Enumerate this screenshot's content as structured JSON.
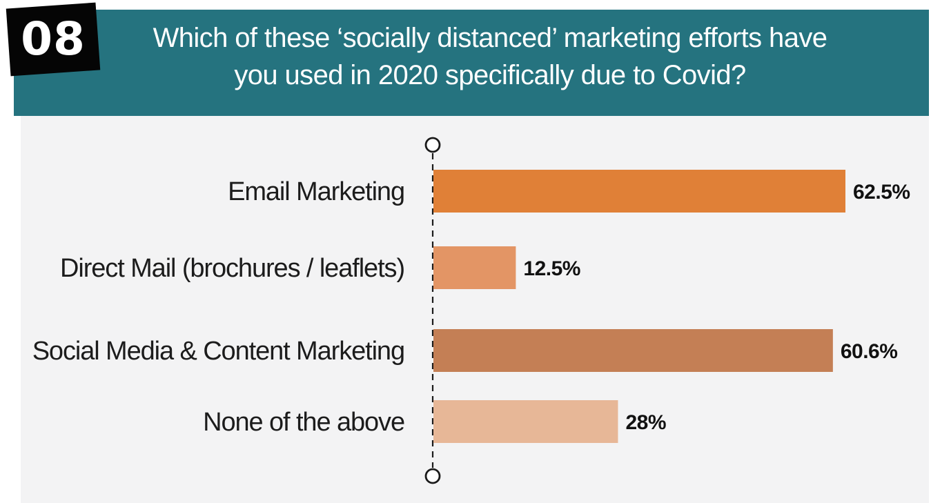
{
  "header": {
    "number": "08",
    "title_line1": "Which of these ‘socially distanced’ marketing efforts have",
    "title_line2": "you used in 2020 specifically due to Covid?",
    "background_color": "#25737f"
  },
  "chart_data": {
    "type": "bar",
    "orientation": "horizontal",
    "title": "Which of these ‘socially distanced’ marketing efforts have you used in 2020 specifically due to Covid?",
    "categories": [
      "Email Marketing",
      "Direct Mail (brochures / leaflets)",
      "Social Media & Content Marketing",
      "None of the above"
    ],
    "values": [
      62.5,
      12.5,
      60.6,
      28
    ],
    "value_labels": [
      "62.5%",
      "12.5%",
      "60.6%",
      "28%"
    ],
    "colors": [
      "#e08037",
      "#e39565",
      "#c47f55",
      "#e7b797"
    ],
    "xlim": [
      0,
      62.5
    ],
    "grid": false,
    "legend": "none"
  }
}
